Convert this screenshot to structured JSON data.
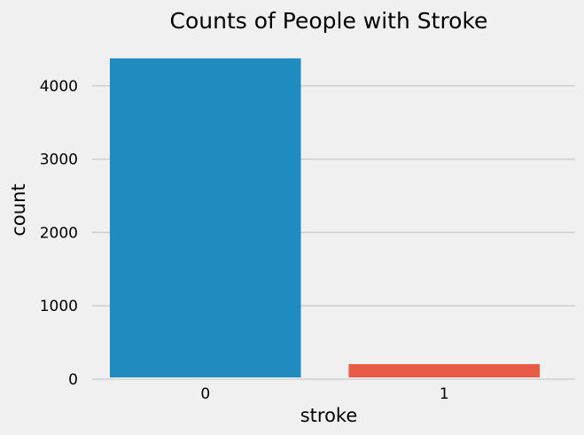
{
  "chart_data": {
    "type": "bar",
    "title": "Counts of People with Stroke",
    "xlabel": "stroke",
    "ylabel": "count",
    "categories": [
      "0",
      "1"
    ],
    "values": [
      4374,
      205
    ],
    "colors": [
      "#1f8bbf",
      "#e75b46"
    ],
    "ylim": [
      0,
      4590
    ],
    "yticks": [
      0,
      1000,
      2000,
      3000,
      4000
    ],
    "grid": "horizontal",
    "background": "#f0f0f0",
    "grid_color": "#cbcbcb"
  }
}
